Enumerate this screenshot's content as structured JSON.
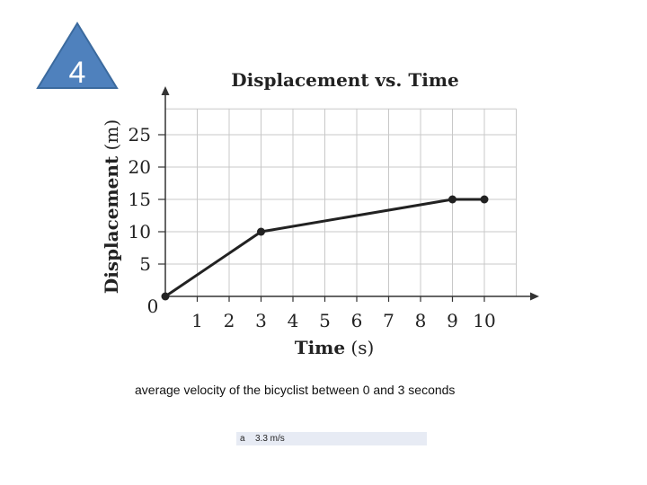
{
  "slide": {
    "number": "4",
    "badge_color": "#4f81bd",
    "badge_border": "#3b6a9e"
  },
  "question": "average velocity of the bicyclist between 0 and 3 seconds",
  "answer": {
    "letter": "a",
    "value": "3.3 m/s"
  },
  "chart_data": {
    "type": "line",
    "title": "Displacement vs. Time",
    "xlabel": {
      "main": "Time",
      "unit": "(s)"
    },
    "ylabel": {
      "main": "Displacement",
      "unit": "(m)"
    },
    "xlim": [
      0,
      11
    ],
    "ylim": [
      0,
      30
    ],
    "x_ticks": [
      1,
      2,
      3,
      4,
      5,
      6,
      7,
      8,
      9,
      10
    ],
    "y_ticks": [
      5,
      10,
      15,
      20,
      25
    ],
    "origin_label": "0",
    "grid": true,
    "series": [
      {
        "points": [
          [
            0,
            0
          ],
          [
            3,
            10
          ],
          [
            9,
            15
          ],
          [
            10,
            15
          ]
        ],
        "color": "#222222"
      }
    ]
  }
}
